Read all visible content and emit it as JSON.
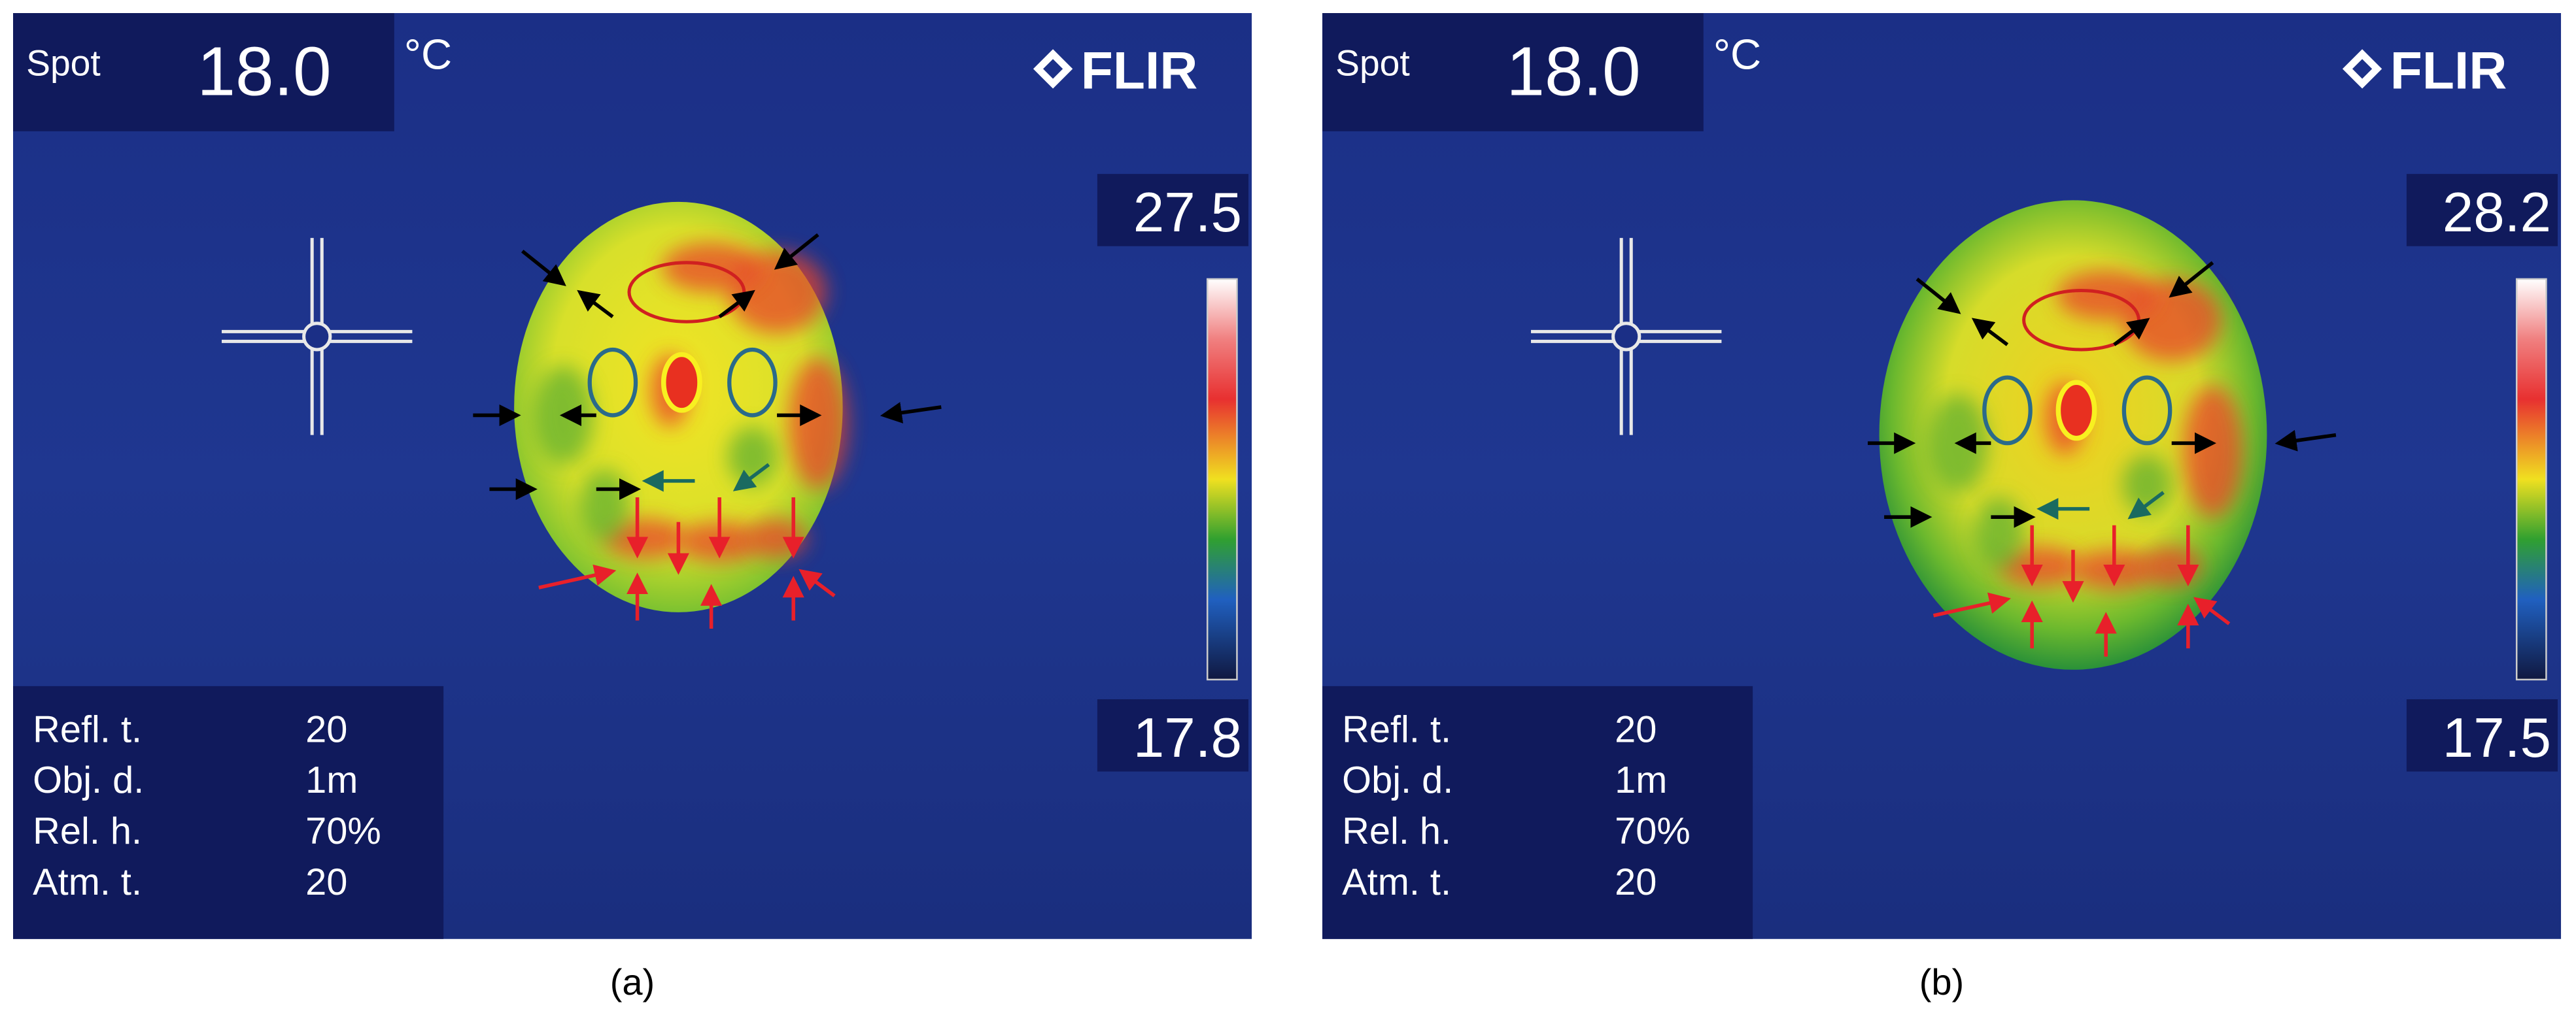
{
  "panels": [
    {
      "spot_label": "Spot",
      "spot_value": "18.0",
      "unit": "°C",
      "brand": "FLIR",
      "scale_max": "27.5",
      "scale_min": "17.8",
      "params": [
        [
          "Refl. t.",
          "20"
        ],
        [
          "Obj. d.",
          "1m"
        ],
        [
          "Rel. h.",
          "70%"
        ],
        [
          "Atm. t.",
          "20"
        ]
      ],
      "caption": "(a)"
    },
    {
      "spot_label": "Spot",
      "spot_value": "18.0",
      "unit": "°C",
      "brand": "FLIR",
      "scale_max": "28.2",
      "scale_min": "17.5",
      "params": [
        [
          "Refl. t.",
          "20"
        ],
        [
          "Obj. d.",
          "1m"
        ],
        [
          "Rel. h.",
          "70%"
        ],
        [
          "Atm. t.",
          "20"
        ]
      ],
      "caption": "(b)"
    }
  ]
}
